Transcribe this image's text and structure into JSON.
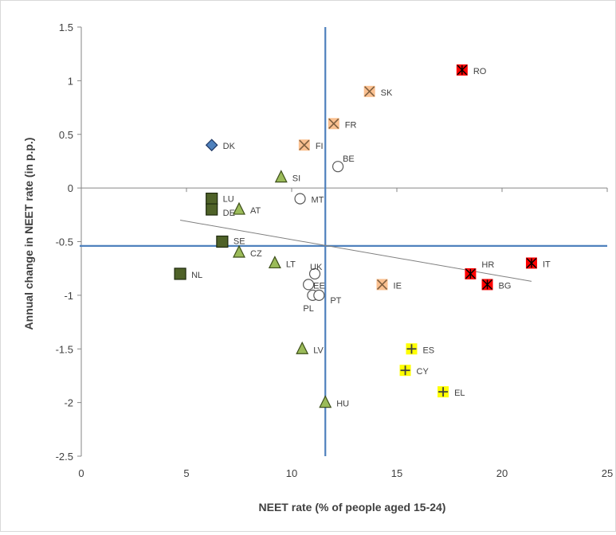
{
  "chart_data": {
    "type": "scatter",
    "xlabel": "NEET rate (% of people aged 15-24)",
    "ylabel": "Annual change in NEET rate (in p.p.)",
    "xlim": [
      0,
      25
    ],
    "ylim": [
      -2.5,
      1.5
    ],
    "x_ticks": [
      0,
      5,
      10,
      15,
      20,
      25
    ],
    "y_ticks": [
      1.5,
      1,
      0.5,
      0,
      -0.5,
      -1,
      -1.5,
      -2,
      -2.5
    ],
    "x_tick_labels": [
      "0",
      "5",
      "10",
      "15",
      "20",
      "25"
    ],
    "y_tick_labels": [
      "1.5",
      "1",
      "0.5",
      "0",
      "-0.5",
      "-1",
      "-1.5",
      "-2",
      "-2.5"
    ],
    "reference_lines": {
      "vertical_x": 11.6,
      "horizontal_y": -0.54,
      "color": "#4f81bd"
    },
    "trendline": {
      "from": [
        4.7,
        -0.3
      ],
      "to": [
        21.4,
        -0.87
      ],
      "color": "#7f7f7f"
    },
    "groups": [
      {
        "marker": "diamond",
        "fill": "#4f81bd",
        "stroke": "#1f3864",
        "points": [
          {
            "label": "DK",
            "x": 6.2,
            "y": 0.4
          }
        ]
      },
      {
        "marker": "square",
        "fill": "#4f6228",
        "stroke": "#1e2a0e",
        "points": [
          {
            "label": "LU",
            "x": 6.2,
            "y": -0.1
          },
          {
            "label": "DE",
            "x": 6.2,
            "y": -0.2
          },
          {
            "label": "SE",
            "x": 6.7,
            "y": -0.5
          },
          {
            "label": "NL",
            "x": 4.7,
            "y": -0.8
          }
        ]
      },
      {
        "marker": "triangle",
        "fill": "#9bbb59",
        "stroke": "#3d4f1a",
        "points": [
          {
            "label": "SI",
            "x": 9.5,
            "y": 0.1
          },
          {
            "label": "AT",
            "x": 7.5,
            "y": -0.2
          },
          {
            "label": "CZ",
            "x": 7.5,
            "y": -0.6
          },
          {
            "label": "LT",
            "x": 9.2,
            "y": -0.7
          },
          {
            "label": "LV",
            "x": 10.5,
            "y": -1.5
          },
          {
            "label": "HU",
            "x": 11.6,
            "y": -2.0
          }
        ]
      },
      {
        "marker": "circle",
        "fill": "#ffffff",
        "stroke": "#595959",
        "points": [
          {
            "label": "BE",
            "x": 12.2,
            "y": 0.2
          },
          {
            "label": "MT",
            "x": 10.4,
            "y": -0.1
          },
          {
            "label": "UK",
            "x": 11.1,
            "y": -0.8
          },
          {
            "label": "EE",
            "x": 10.8,
            "y": -0.9
          },
          {
            "label": "PL",
            "x": 11.0,
            "y": -1.0
          },
          {
            "label": "PT",
            "x": 11.3,
            "y": -1.0
          }
        ]
      },
      {
        "marker": "x",
        "fill": "#fac090",
        "stroke": "#7f5f3f",
        "points": [
          {
            "label": "SK",
            "x": 13.7,
            "y": 0.9
          },
          {
            "label": "FR",
            "x": 12.0,
            "y": 0.6
          },
          {
            "label": "FI",
            "x": 10.6,
            "y": 0.4
          },
          {
            "label": "IE",
            "x": 14.3,
            "y": -0.9
          }
        ]
      },
      {
        "marker": "plus",
        "fill": "#ffff00",
        "stroke": "#404040",
        "points": [
          {
            "label": "ES",
            "x": 15.7,
            "y": -1.5
          },
          {
            "label": "CY",
            "x": 15.4,
            "y": -1.7
          },
          {
            "label": "EL",
            "x": 17.2,
            "y": -1.9
          }
        ]
      },
      {
        "marker": "asterisk",
        "fill": "#ff0000",
        "stroke": "#000000",
        "points": [
          {
            "label": "RO",
            "x": 18.1,
            "y": 1.1
          },
          {
            "label": "HR",
            "x": 18.5,
            "y": -0.8
          },
          {
            "label": "BG",
            "x": 19.3,
            "y": -0.9
          },
          {
            "label": "IT",
            "x": 21.4,
            "y": -0.7
          }
        ]
      }
    ]
  }
}
